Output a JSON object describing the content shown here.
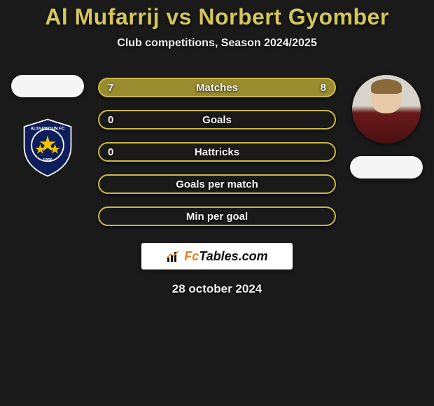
{
  "title": "Al Mufarrij vs Norbert Gyomber",
  "subtitle": "Club competitions, Season 2024/2025",
  "date": "28 october 2024",
  "brand": {
    "prefix": "Fc",
    "suffix": "Tables.com"
  },
  "colors": {
    "title": "#d4c65a",
    "background": "#1a1a1a",
    "bar_border": "#c9b84a",
    "bar_fill": "#998c2e",
    "logo_accent": "#e67e22"
  },
  "club_badge": {
    "name": "ALTAAWOUN FC",
    "year": "1956",
    "outer": "#0e1e5a",
    "ring": "#ffffff",
    "star": "#f2c200"
  },
  "bars": [
    {
      "label": "Matches",
      "left": "7",
      "right": "8",
      "left_pct": 47,
      "right_pct": 53
    },
    {
      "label": "Goals",
      "left": "0",
      "right": "",
      "left_pct": 0,
      "right_pct": 0
    },
    {
      "label": "Hattricks",
      "left": "0",
      "right": "",
      "left_pct": 0,
      "right_pct": 0
    },
    {
      "label": "Goals per match",
      "left": "",
      "right": "",
      "left_pct": 0,
      "right_pct": 0
    },
    {
      "label": "Min per goal",
      "left": "",
      "right": "",
      "left_pct": 0,
      "right_pct": 0
    }
  ]
}
